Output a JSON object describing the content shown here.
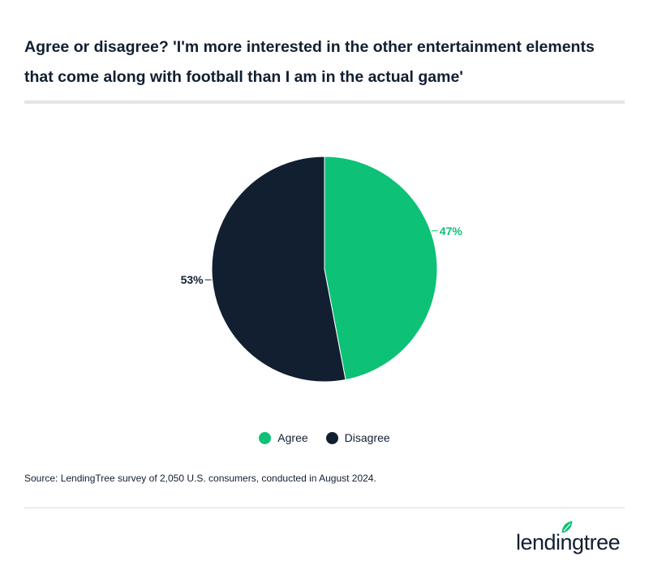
{
  "title": "Agree or disagree? 'I'm more interested in the other entertainment elements that come along with football than I am in the actual game'",
  "chart_data": {
    "type": "pie",
    "title": "Agree or disagree? 'I'm more interested in the other entertainment elements that come along with football than I am in the actual game'",
    "slices": [
      {
        "name": "Agree",
        "value": 47,
        "label": "47%",
        "color": "#0dc176"
      },
      {
        "name": "Disagree",
        "value": 53,
        "label": "53%",
        "color": "#111f31"
      }
    ],
    "start": "12 o'clock, clockwise",
    "legend_placement": "bottom"
  },
  "legend": [
    {
      "label": "Agree",
      "color": "#0dc176"
    },
    {
      "label": "Disagree",
      "color": "#111f31"
    }
  ],
  "source": "Source: LendingTree survey of 2,050 U.S. consumers, conducted in August 2024.",
  "logo": {
    "text": "lendingtree",
    "icon": "leaf-icon"
  }
}
